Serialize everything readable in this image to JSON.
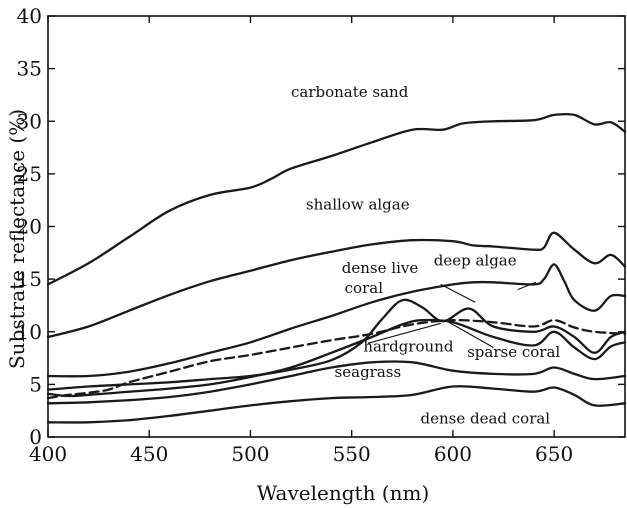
{
  "chart_data": {
    "type": "line",
    "title": "",
    "xlabel": "Wavelength (nm)",
    "ylabel": "Substrate reflectance (%)",
    "xlim": [
      400,
      685
    ],
    "ylim": [
      0,
      40
    ],
    "xticks": [
      400,
      450,
      500,
      550,
      600,
      650
    ],
    "yticks": [
      0,
      5,
      10,
      15,
      20,
      25,
      30,
      35,
      40
    ],
    "grid": false,
    "legend": "none (curves labeled directly)",
    "series": [
      {
        "name": "carbonate sand",
        "style": "solid",
        "x": [
          400,
          420,
          440,
          460,
          480,
          500,
          510,
          520,
          540,
          560,
          580,
          595,
          605,
          620,
          640,
          650,
          660,
          670,
          678,
          685
        ],
        "y": [
          14.5,
          16.5,
          19.0,
          21.5,
          23.0,
          23.7,
          24.5,
          25.5,
          26.7,
          28.0,
          29.2,
          29.2,
          29.8,
          30.0,
          30.1,
          30.6,
          30.6,
          29.7,
          29.9,
          29.0
        ]
      },
      {
        "name": "shallow algae",
        "style": "solid",
        "x": [
          400,
          420,
          440,
          460,
          480,
          500,
          520,
          540,
          560,
          580,
          600,
          610,
          620,
          640,
          645,
          650,
          660,
          670,
          678,
          685
        ],
        "y": [
          9.5,
          10.5,
          12.0,
          13.5,
          14.8,
          15.8,
          16.8,
          17.6,
          18.3,
          18.7,
          18.6,
          18.2,
          18.1,
          17.8,
          18.0,
          19.4,
          17.8,
          16.5,
          17.3,
          16.2
        ]
      },
      {
        "name": "deep algae",
        "style": "solid",
        "x": [
          400,
          420,
          440,
          460,
          480,
          500,
          520,
          540,
          560,
          580,
          600,
          610,
          620,
          640,
          645,
          650,
          655,
          660,
          670,
          678,
          685
        ],
        "y": [
          5.8,
          5.8,
          6.2,
          7.0,
          8.0,
          9.0,
          10.3,
          11.5,
          12.8,
          13.8,
          14.5,
          14.7,
          14.7,
          14.5,
          15.0,
          16.4,
          14.8,
          13.0,
          12.0,
          13.4,
          13.4
        ]
      },
      {
        "name": "dense live coral",
        "style": "solid",
        "x": [
          400,
          420,
          440,
          460,
          480,
          500,
          520,
          540,
          555,
          565,
          575,
          585,
          595,
          608,
          620,
          640,
          650,
          660,
          670,
          678,
          685
        ],
        "y": [
          4.5,
          4.8,
          5.0,
          5.2,
          5.5,
          5.8,
          6.4,
          7.3,
          9.0,
          11.2,
          13.0,
          12.3,
          11.0,
          12.2,
          10.5,
          10.0,
          10.5,
          9.5,
          8.0,
          9.5,
          10.0
        ]
      },
      {
        "name": "hardground",
        "style": "dashed",
        "x": [
          400,
          410,
          420,
          430,
          440,
          460,
          480,
          500,
          520,
          540,
          560,
          580,
          600,
          620,
          640,
          650,
          660,
          670,
          685
        ],
        "y": [
          3.7,
          4.0,
          4.2,
          4.5,
          5.2,
          6.2,
          7.2,
          7.8,
          8.5,
          9.2,
          9.8,
          10.7,
          11.1,
          10.9,
          10.5,
          11.1,
          10.4,
          10.0,
          9.8
        ]
      },
      {
        "name": "sparse coral",
        "style": "solid",
        "x": [
          400,
          410,
          420,
          440,
          460,
          480,
          500,
          520,
          540,
          560,
          575,
          585,
          600,
          620,
          640,
          650,
          660,
          670,
          678,
          685
        ],
        "y": [
          4.1,
          3.9,
          4.0,
          4.3,
          4.6,
          5.0,
          5.7,
          6.6,
          8.0,
          9.5,
          10.7,
          11.1,
          10.9,
          9.5,
          8.7,
          10.0,
          8.5,
          7.4,
          8.6,
          9.0
        ]
      },
      {
        "name": "seagrass",
        "style": "solid",
        "x": [
          400,
          420,
          440,
          460,
          480,
          500,
          520,
          540,
          560,
          580,
          600,
          620,
          640,
          650,
          660,
          670,
          685
        ],
        "y": [
          3.2,
          3.3,
          3.5,
          3.8,
          4.3,
          5.0,
          5.8,
          6.6,
          7.1,
          7.1,
          6.3,
          6.0,
          6.0,
          6.6,
          6.0,
          5.5,
          5.8
        ]
      },
      {
        "name": "dense dead coral",
        "style": "solid",
        "x": [
          400,
          420,
          440,
          460,
          480,
          500,
          520,
          540,
          560,
          580,
          600,
          620,
          640,
          650,
          660,
          670,
          685
        ],
        "y": [
          1.4,
          1.4,
          1.6,
          2.0,
          2.5,
          3.0,
          3.4,
          3.7,
          3.8,
          4.0,
          4.8,
          4.6,
          4.3,
          4.7,
          4.0,
          3.0,
          3.2
        ]
      }
    ],
    "annotations": [
      {
        "text": "carbonate sand",
        "x": 549,
        "y": 32.3
      },
      {
        "text": "shallow algae",
        "x": 553,
        "y": 21.6
      },
      {
        "text": "dense live",
        "x": 564,
        "y": 15.6
      },
      {
        "text": "coral",
        "x": 556,
        "y": 13.7
      },
      {
        "text": "deep algae",
        "x": 611,
        "y": 16.3
      },
      {
        "text": "hardground",
        "x": 578,
        "y": 8.1
      },
      {
        "text": "sparse coral",
        "x": 630,
        "y": 7.6
      },
      {
        "text": "seagrass",
        "x": 558,
        "y": 5.7
      },
      {
        "text": "dense dead coral",
        "x": 616,
        "y": 1.3
      }
    ]
  }
}
